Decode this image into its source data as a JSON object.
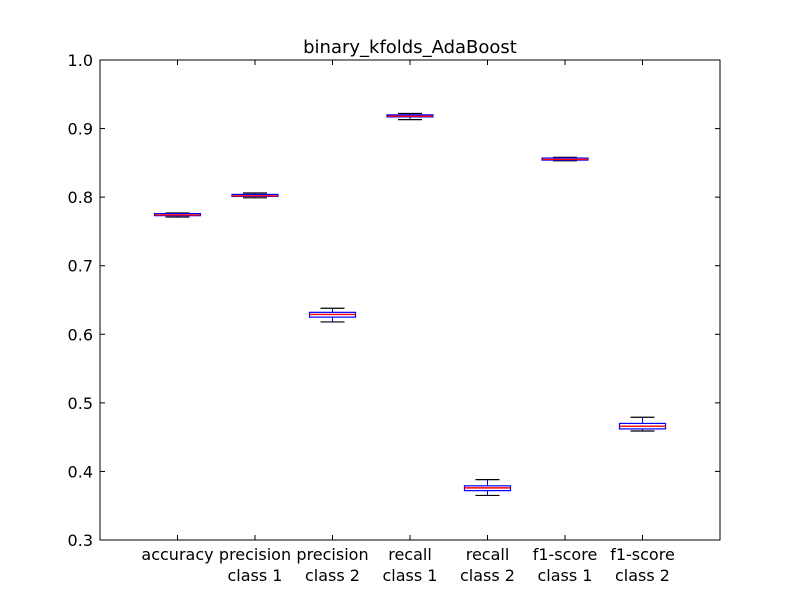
{
  "chart_data": {
    "type": "box",
    "title": "binary_kfolds_AdaBoost",
    "xlabel": "",
    "ylabel": "",
    "ylim": [
      0.3,
      1.0
    ],
    "yticks": [
      "0.3",
      "0.4",
      "0.5",
      "0.6",
      "0.7",
      "0.8",
      "0.9",
      "1.0"
    ],
    "grid": false,
    "categories": [
      [
        "accuracy"
      ],
      [
        "precision",
        "class 1"
      ],
      [
        "precision",
        "class 2"
      ],
      [
        "recall",
        "class 1"
      ],
      [
        "recall",
        "class 2"
      ],
      [
        "f1-score",
        "class 1"
      ],
      [
        "f1-score",
        "class 2"
      ]
    ],
    "boxes": [
      {
        "whisker_low": 0.771,
        "q1": 0.773,
        "median": 0.774,
        "q3": 0.776,
        "whisker_high": 0.777
      },
      {
        "whisker_low": 0.799,
        "q1": 0.801,
        "median": 0.802,
        "q3": 0.804,
        "whisker_high": 0.806
      },
      {
        "whisker_low": 0.618,
        "q1": 0.625,
        "median": 0.629,
        "q3": 0.632,
        "whisker_high": 0.638
      },
      {
        "whisker_low": 0.913,
        "q1": 0.917,
        "median": 0.918,
        "q3": 0.92,
        "whisker_high": 0.922
      },
      {
        "whisker_low": 0.365,
        "q1": 0.372,
        "median": 0.376,
        "q3": 0.379,
        "whisker_high": 0.388
      },
      {
        "whisker_low": 0.853,
        "q1": 0.854,
        "median": 0.855,
        "q3": 0.857,
        "whisker_high": 0.858
      },
      {
        "whisker_low": 0.459,
        "q1": 0.462,
        "median": 0.466,
        "q3": 0.47,
        "whisker_high": 0.479
      }
    ],
    "colors": {
      "box": "#0000ff",
      "whisker": "#0000ff",
      "cap": "#000000",
      "median": "#ff0000",
      "axes": "#000000"
    }
  }
}
